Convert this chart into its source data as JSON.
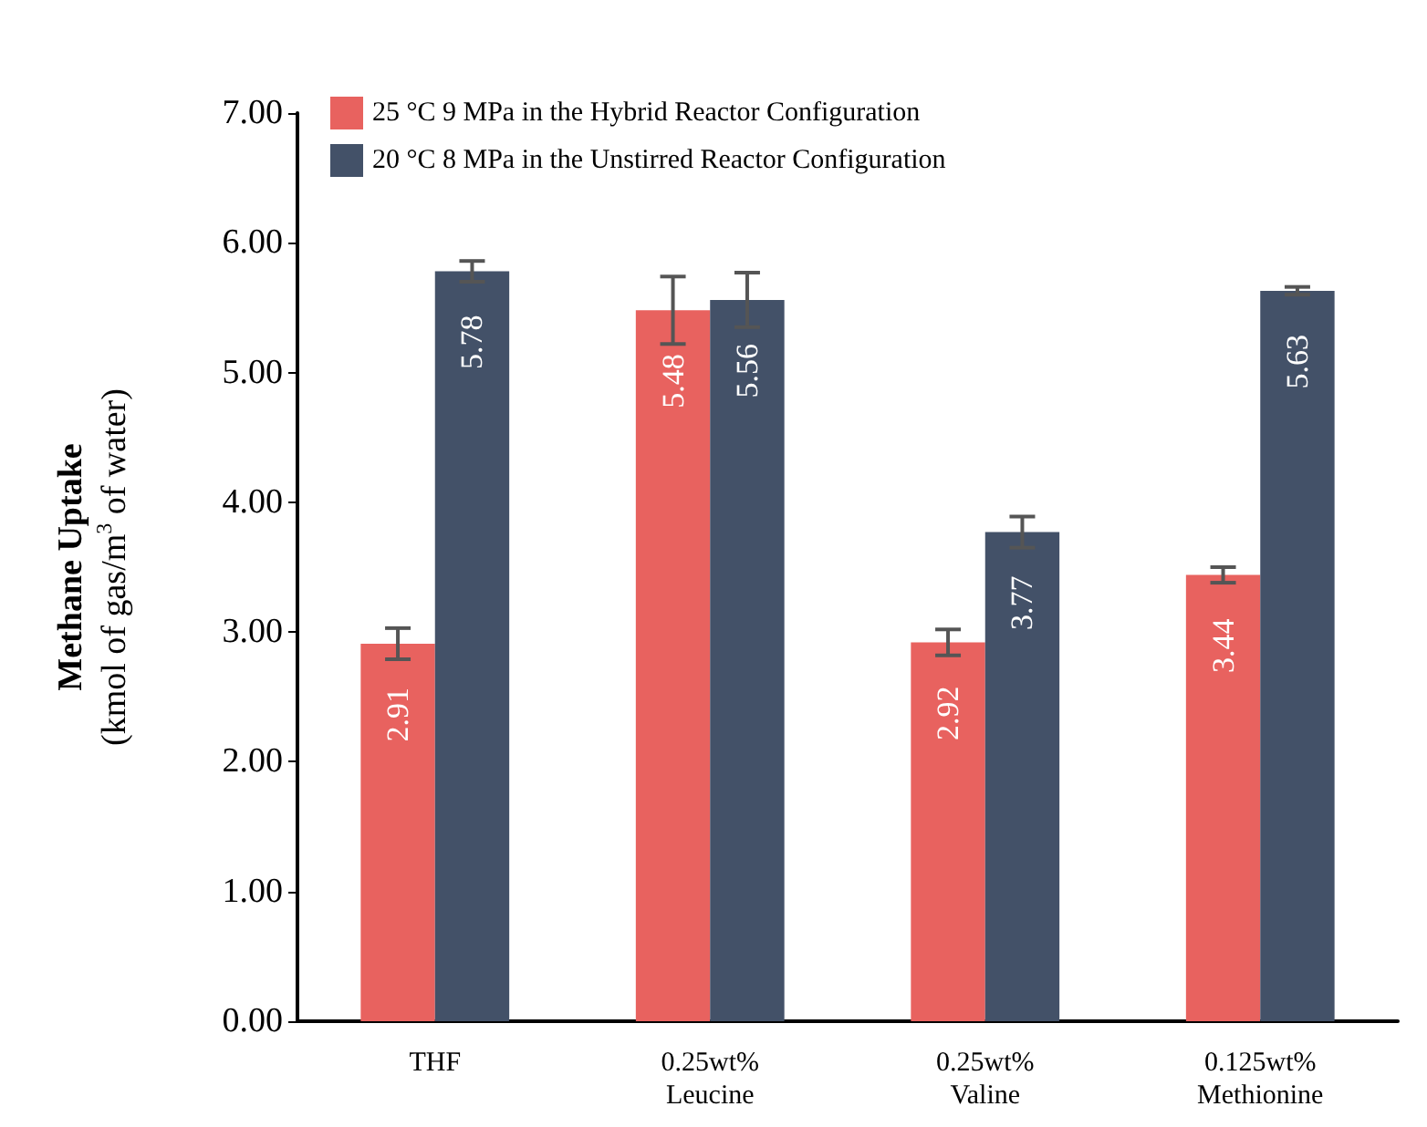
{
  "chart_data": {
    "type": "bar",
    "ylabel": "Methane Uptake\n(kmol of gas/m$^{3}$ of water)",
    "categories": [
      "THF",
      "0.25wt%\nLeucine",
      "0.25wt%\nValine",
      "0.125wt%\nMethionine"
    ],
    "series": [
      {
        "name": "25 °C 9 MPa in the Hybrid Reactor Configuration",
        "color": "#e8625f",
        "values": [
          2.91,
          5.48,
          2.92,
          3.44
        ],
        "errors": [
          0.12,
          0.26,
          0.1,
          0.06
        ]
      },
      {
        "name": "20 °C 8 MPa in the Unstirred Reactor Configuration",
        "color": "#435168",
        "values": [
          5.78,
          5.56,
          3.77,
          5.63
        ],
        "errors": [
          0.08,
          0.21,
          0.12,
          0.03
        ]
      }
    ],
    "ylim": [
      0,
      7
    ],
    "yticks": [
      {
        "value": 0,
        "label": "0.00"
      },
      {
        "value": 1,
        "label": "1.00"
      },
      {
        "value": 2,
        "label": "2.00"
      },
      {
        "value": 3,
        "label": "3.00"
      },
      {
        "value": 4,
        "label": "4.00"
      },
      {
        "value": 5,
        "label": "5.00"
      },
      {
        "value": 6,
        "label": "6.00"
      },
      {
        "value": 7,
        "label": "7.00"
      }
    ],
    "data_labels": true,
    "grid": false,
    "legend": "top left"
  }
}
